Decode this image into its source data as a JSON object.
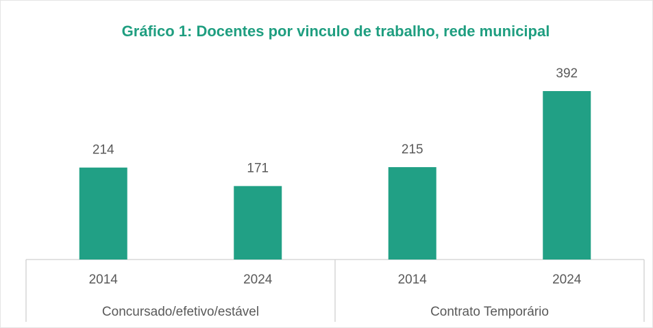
{
  "chart_data": {
    "type": "bar",
    "title": "Gráfico 1: Docentes por vinculo de trabalho, rede municipal",
    "categories": [
      "2014",
      "2024",
      "2014",
      "2024"
    ],
    "groups": [
      "Concursado/efetivo/estável",
      "Contrato Temporário"
    ],
    "values": [
      214,
      171,
      215,
      392
    ],
    "color": "#21a085"
  }
}
